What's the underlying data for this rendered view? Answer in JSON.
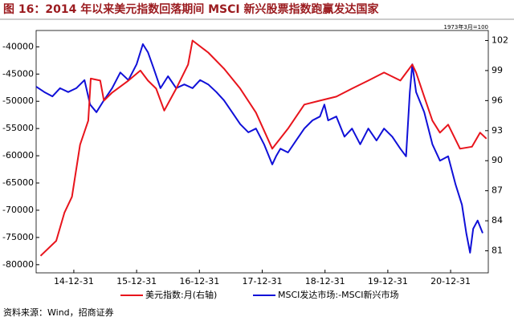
{
  "chart_data": {
    "type": "line",
    "title": "图 16：2014 年以来美元指数回落期间 MSCI 新兴股票指数跑赢发达国家",
    "note": "1973年3月=100",
    "source": "资料来源：Wind，招商证券",
    "xlim": [
      2014.4,
      2021.6
    ],
    "xticks": [
      {
        "value": 2015,
        "label": "14-12-31"
      },
      {
        "value": 2016,
        "label": "15-12-31"
      },
      {
        "value": 2017,
        "label": "16-12-31"
      },
      {
        "value": 2018,
        "label": "17-12-31"
      },
      {
        "value": 2019,
        "label": "18-12-31"
      },
      {
        "value": 2020,
        "label": "19-12-31"
      },
      {
        "value": 2021,
        "label": "20-12-31"
      }
    ],
    "ylim": [
      -81500,
      -37000
    ],
    "yticks": [
      -80000,
      -75000,
      -70000,
      -65000,
      -60000,
      -55000,
      -50000,
      -45000,
      -40000
    ],
    "y2lim": [
      78.8,
      103
    ],
    "y2ticks": [
      81,
      84,
      87,
      90,
      93,
      96,
      99,
      102
    ],
    "series": [
      {
        "name": "美元指数:月(右轴)",
        "color": "#e8141c",
        "axis": "y2",
        "x": [
          2014.47,
          2014.72,
          2014.85,
          2014.97,
          2015.1,
          2015.23,
          2015.27,
          2015.42,
          2015.48,
          2015.61,
          2015.87,
          2016.06,
          2016.18,
          2016.31,
          2016.44,
          2016.63,
          2016.82,
          2016.89,
          2017.14,
          2017.39,
          2017.65,
          2017.9,
          2018.16,
          2018.41,
          2018.67,
          2018.92,
          2019.18,
          2019.43,
          2019.69,
          2019.94,
          2020.2,
          2020.39,
          2020.45,
          2020.58,
          2020.71,
          2020.83,
          2020.96,
          2021.15,
          2021.34,
          2021.47,
          2021.57
        ],
        "values": [
          80.5,
          82.0,
          84.8,
          86.4,
          91.6,
          94.0,
          98.2,
          98.0,
          96.0,
          96.8,
          98.0,
          99.0,
          98.0,
          97.2,
          95.0,
          97.2,
          99.6,
          102.0,
          100.8,
          99.2,
          97.2,
          94.8,
          91.2,
          93.2,
          95.6,
          96.0,
          96.4,
          97.2,
          98.0,
          98.8,
          98.0,
          99.6,
          98.8,
          96.4,
          94.0,
          92.8,
          93.6,
          91.2,
          91.4,
          92.8,
          92.2
        ]
      },
      {
        "name": "MSCI发达市场:-MSCI新兴市场",
        "color": "#1010d8",
        "x": [
          2014.4,
          2014.53,
          2014.66,
          2014.78,
          2014.91,
          2015.04,
          2015.17,
          2015.26,
          2015.36,
          2015.48,
          2015.61,
          2015.74,
          2015.87,
          2016.0,
          2016.1,
          2016.18,
          2016.27,
          2016.38,
          2016.5,
          2016.63,
          2016.76,
          2016.89,
          2017.01,
          2017.14,
          2017.27,
          2017.39,
          2017.52,
          2017.65,
          2017.78,
          2017.9,
          2018.03,
          2018.16,
          2018.22,
          2018.29,
          2018.41,
          2018.54,
          2018.67,
          2018.8,
          2018.92,
          2018.99,
          2019.05,
          2019.18,
          2019.31,
          2019.43,
          2019.56,
          2019.69,
          2019.82,
          2019.94,
          2020.07,
          2020.2,
          2020.29,
          2020.35,
          2020.39,
          2020.45,
          2020.58,
          2020.71,
          2020.83,
          2020.96,
          2021.08,
          2021.18,
          2021.25,
          2021.31,
          2021.36,
          2021.43,
          2021.51
        ],
        "values": [
          -47300,
          -48300,
          -49100,
          -47600,
          -48300,
          -47600,
          -46100,
          -50600,
          -52000,
          -49800,
          -47600,
          -44700,
          -46100,
          -43200,
          -39500,
          -41000,
          -43900,
          -47600,
          -45400,
          -47600,
          -46900,
          -47600,
          -46100,
          -46900,
          -48300,
          -49800,
          -52000,
          -54200,
          -55700,
          -55000,
          -57900,
          -61600,
          -60100,
          -58700,
          -59400,
          -57200,
          -55000,
          -53500,
          -52800,
          -50600,
          -53500,
          -52800,
          -56500,
          -55000,
          -57900,
          -55000,
          -57200,
          -55000,
          -56500,
          -58700,
          -60100,
          -48300,
          -43200,
          -48300,
          -52000,
          -57900,
          -60900,
          -60100,
          -65300,
          -69000,
          -74200,
          -77800,
          -73400,
          -71900,
          -74200
        ]
      }
    ]
  }
}
